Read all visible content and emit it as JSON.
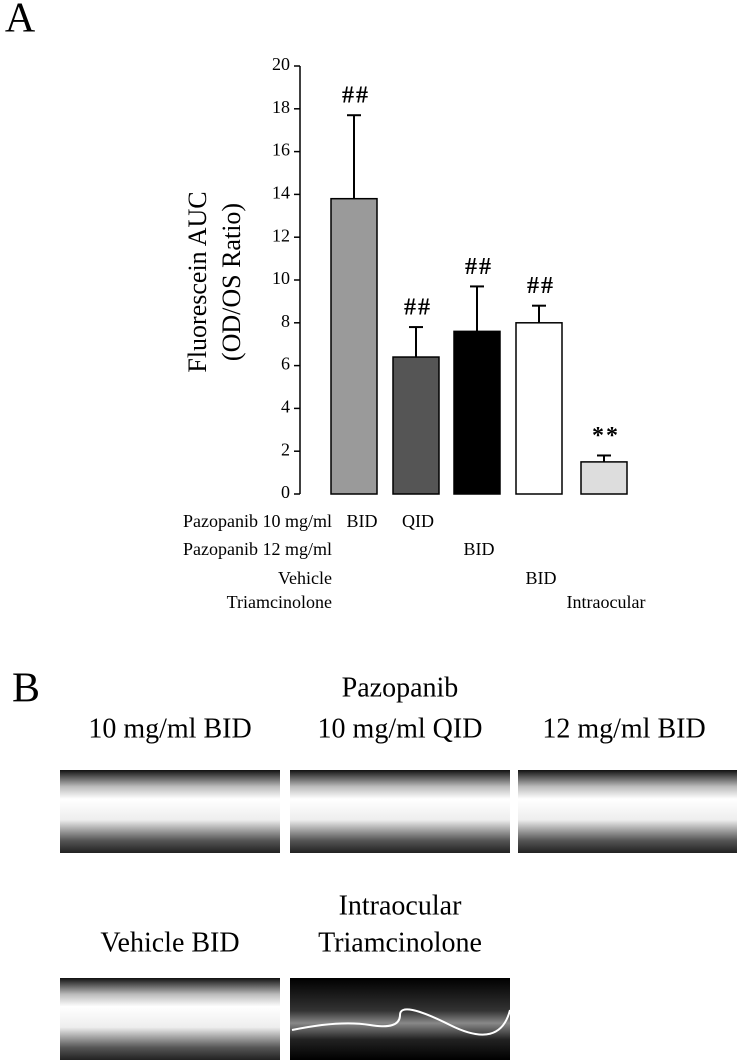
{
  "panel_a_label": "A",
  "chart_data": {
    "type": "bar",
    "ylabel": [
      "Fluorescein AUC",
      "(OD/OS Ratio)"
    ],
    "values": [
      13.8,
      6.4,
      7.6,
      8.0,
      1.5
    ],
    "errors": [
      3.9,
      1.4,
      2.1,
      0.8,
      0.3
    ],
    "colors": [
      "#9a9a9a",
      "#555555",
      "#000000",
      "#ffffff",
      "#dddddd"
    ],
    "annotations": [
      "##",
      "##",
      "##",
      "##",
      "**"
    ],
    "ylim": [
      0,
      20
    ],
    "yticks": [
      0,
      2,
      4,
      6,
      8,
      10,
      12,
      14,
      16,
      18,
      20
    ],
    "treatment_rows": [
      {
        "label": "Pazopanib 10 mg/ml",
        "entries": [
          "BID",
          "QID",
          null,
          null,
          null
        ]
      },
      {
        "label": "Pazopanib 12 mg/ml",
        "entries": [
          null,
          null,
          "BID",
          null,
          null
        ]
      },
      {
        "label": "Vehicle",
        "entries": [
          null,
          null,
          null,
          "BID",
          null
        ]
      },
      {
        "label": "Triamcinolone",
        "entries": [
          null,
          null,
          null,
          null,
          "Intraocular"
        ]
      }
    ]
  },
  "panel_b": {
    "label": "B",
    "group_title": "Pazopanib",
    "captions": [
      "10 mg/ml BID",
      "10 mg/ml QID",
      "12 mg/ml BID",
      "Vehicle BID",
      "Intraocular",
      "Triamcinolone"
    ]
  }
}
